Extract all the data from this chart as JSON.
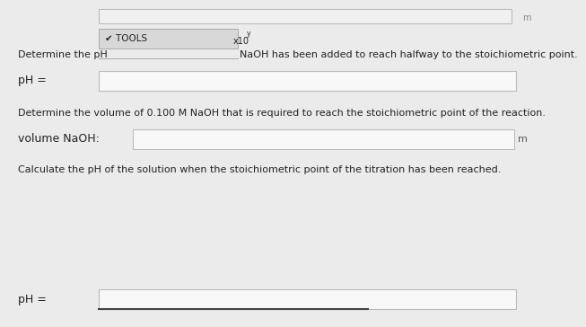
{
  "background_color": "#ebebeb",
  "input_box_color": "#f8f8f8",
  "input_box_edge_color": "#bbbbbb",
  "text_color": "#222222",
  "tools_label": "✔ TOOLS",
  "tools_box_color": "#d8d8d8",
  "tools_box_edge": "#aaaaaa",
  "line1_prefix": "Determine the pH",
  "line1_suffix": "NaOH has been added to reach halfway to the stoichiometric point.",
  "ph_label1": "pH =",
  "line2": "Determine the volume of 0.100 M NaOH that is required to reach the stoichiometric point of the reaction.",
  "volume_label": "volume NaOH:",
  "line3": "Calculate the pH of the solution when the stoichiometric point of the titration has been reached.",
  "ph_label2": "pH =",
  "mL_label": "m",
  "top_box_color": "#f0f0f0",
  "top_box_edge": "#bbbbbb"
}
